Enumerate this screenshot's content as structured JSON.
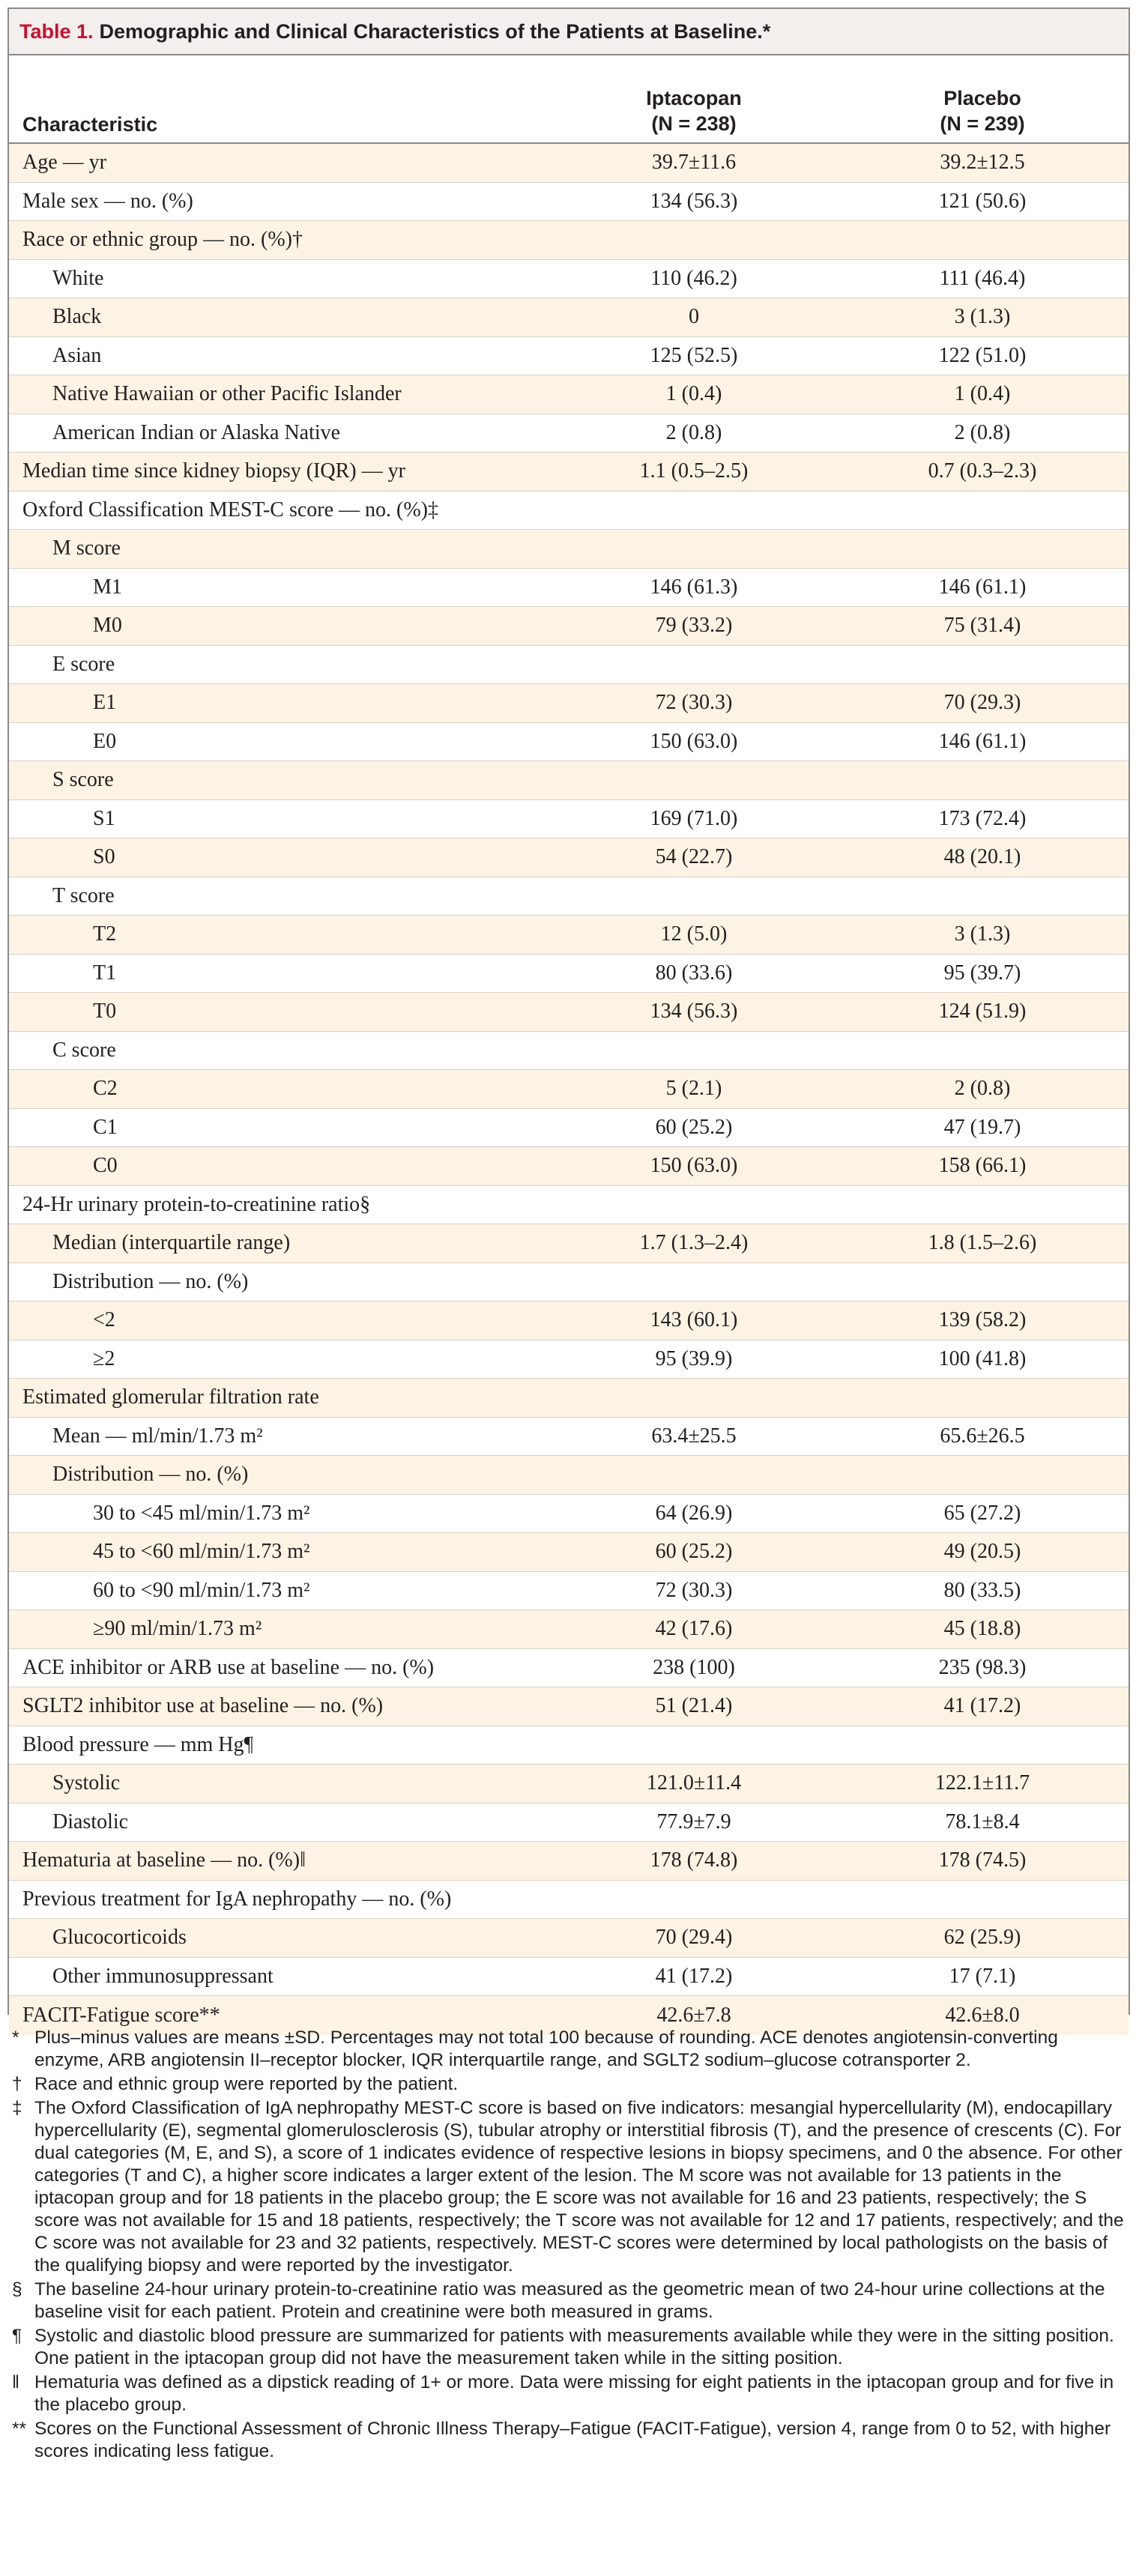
{
  "table": {
    "number": "Table 1.",
    "title": "Demographic and Clinical Characteristics of the Patients at Baseline.*"
  },
  "header": {
    "characteristic": "Characteristic",
    "iptacopan": "Iptacopan",
    "iptacopan_n": "(N = 238)",
    "placebo": "Placebo",
    "placebo_n": "(N = 239)"
  },
  "rows": [
    {
      "label": "Age — yr",
      "iptacopan": "39.7±11.6",
      "placebo": "39.2±12.5",
      "level": 0
    },
    {
      "label": "Male sex — no. (%)",
      "iptacopan": "134 (56.3)",
      "placebo": "121 (50.6)",
      "level": 0
    },
    {
      "label": "Race or ethnic group — no. (%)†",
      "iptacopan": "",
      "placebo": "",
      "level": 0
    },
    {
      "label": "White",
      "iptacopan": "110 (46.2)",
      "placebo": "111 (46.4)",
      "level": 1
    },
    {
      "label": "Black",
      "iptacopan": "0",
      "placebo": "3 (1.3)",
      "level": 1
    },
    {
      "label": "Asian",
      "iptacopan": "125 (52.5)",
      "placebo": "122 (51.0)",
      "level": 1
    },
    {
      "label": "Native Hawaiian or other Pacific Islander",
      "iptacopan": "1 (0.4)",
      "placebo": "1 (0.4)",
      "level": 1
    },
    {
      "label": "American Indian or Alaska Native",
      "iptacopan": "2 (0.8)",
      "placebo": "2 (0.8)",
      "level": 1
    },
    {
      "label": "Median time since kidney biopsy (IQR) — yr",
      "iptacopan": "1.1 (0.5–2.5)",
      "placebo": "0.7 (0.3–2.3)",
      "level": 0
    },
    {
      "label": "Oxford Classification MEST-C score — no. (%)‡",
      "iptacopan": "",
      "placebo": "",
      "level": 0
    },
    {
      "label": "M score",
      "iptacopan": "",
      "placebo": "",
      "level": 1
    },
    {
      "label": "M1",
      "iptacopan": "146 (61.3)",
      "placebo": "146 (61.1)",
      "level": 2
    },
    {
      "label": "M0",
      "iptacopan": "79 (33.2)",
      "placebo": "75 (31.4)",
      "level": 2
    },
    {
      "label": "E score",
      "iptacopan": "",
      "placebo": "",
      "level": 1
    },
    {
      "label": "E1",
      "iptacopan": "72 (30.3)",
      "placebo": "70 (29.3)",
      "level": 2
    },
    {
      "label": "E0",
      "iptacopan": "150 (63.0)",
      "placebo": "146 (61.1)",
      "level": 2
    },
    {
      "label": "S score",
      "iptacopan": "",
      "placebo": "",
      "level": 1
    },
    {
      "label": "S1",
      "iptacopan": "169 (71.0)",
      "placebo": "173 (72.4)",
      "level": 2
    },
    {
      "label": "S0",
      "iptacopan": "54 (22.7)",
      "placebo": "48 (20.1)",
      "level": 2
    },
    {
      "label": "T score",
      "iptacopan": "",
      "placebo": "",
      "level": 1
    },
    {
      "label": "T2",
      "iptacopan": "12 (5.0)",
      "placebo": "3 (1.3)",
      "level": 2
    },
    {
      "label": "T1",
      "iptacopan": "80 (33.6)",
      "placebo": "95 (39.7)",
      "level": 2
    },
    {
      "label": "T0",
      "iptacopan": "134 (56.3)",
      "placebo": "124 (51.9)",
      "level": 2
    },
    {
      "label": "C score",
      "iptacopan": "",
      "placebo": "",
      "level": 1
    },
    {
      "label": "C2",
      "iptacopan": "5 (2.1)",
      "placebo": "2 (0.8)",
      "level": 2
    },
    {
      "label": "C1",
      "iptacopan": "60 (25.2)",
      "placebo": "47 (19.7)",
      "level": 2
    },
    {
      "label": "C0",
      "iptacopan": "150 (63.0)",
      "placebo": "158 (66.1)",
      "level": 2
    },
    {
      "label": "24-Hr urinary protein-to-creatinine ratio§",
      "iptacopan": "",
      "placebo": "",
      "level": 0
    },
    {
      "label": "Median (interquartile range)",
      "iptacopan": "1.7 (1.3–2.4)",
      "placebo": "1.8 (1.5–2.6)",
      "level": 1
    },
    {
      "label": "Distribution — no. (%)",
      "iptacopan": "",
      "placebo": "",
      "level": 1
    },
    {
      "label": "<2",
      "iptacopan": "143 (60.1)",
      "placebo": "139 (58.2)",
      "level": 2
    },
    {
      "label": "≥2",
      "iptacopan": "95 (39.9)",
      "placebo": "100 (41.8)",
      "level": 2
    },
    {
      "label": "Estimated glomerular filtration rate",
      "iptacopan": "",
      "placebo": "",
      "level": 0
    },
    {
      "label": "Mean — ml/min/1.73 m²",
      "iptacopan": "63.4±25.5",
      "placebo": "65.6±26.5",
      "level": 1
    },
    {
      "label": "Distribution — no. (%)",
      "iptacopan": "",
      "placebo": "",
      "level": 1
    },
    {
      "label": "30 to <45 ml/min/1.73 m²",
      "iptacopan": "64 (26.9)",
      "placebo": "65 (27.2)",
      "level": 2
    },
    {
      "label": "45 to <60 ml/min/1.73 m²",
      "iptacopan": "60 (25.2)",
      "placebo": "49 (20.5)",
      "level": 2
    },
    {
      "label": "60 to <90 ml/min/1.73 m²",
      "iptacopan": "72 (30.3)",
      "placebo": "80 (33.5)",
      "level": 2
    },
    {
      "label": "≥90 ml/min/1.73 m²",
      "iptacopan": "42 (17.6)",
      "placebo": "45 (18.8)",
      "level": 2
    },
    {
      "label": "ACE inhibitor or ARB use at baseline — no. (%)",
      "iptacopan": "238 (100)",
      "placebo": "235 (98.3)",
      "level": 0
    },
    {
      "label": "SGLT2 inhibitor use at baseline — no. (%)",
      "iptacopan": "51 (21.4)",
      "placebo": "41 (17.2)",
      "level": 0
    },
    {
      "label": "Blood pressure — mm Hg¶",
      "iptacopan": "",
      "placebo": "",
      "level": 0
    },
    {
      "label": "Systolic",
      "iptacopan": "121.0±11.4",
      "placebo": "122.1±11.7",
      "level": 1
    },
    {
      "label": "Diastolic",
      "iptacopan": "77.9±7.9",
      "placebo": "78.1±8.4",
      "level": 1
    },
    {
      "label": "Hematuria at baseline — no. (%)‖",
      "iptacopan": "178 (74.8)",
      "placebo": "178 (74.5)",
      "level": 0
    },
    {
      "label": "Previous treatment for IgA nephropathy — no. (%)",
      "iptacopan": "",
      "placebo": "",
      "level": 0
    },
    {
      "label": "Glucocorticoids",
      "iptacopan": "70 (29.4)",
      "placebo": "62 (25.9)",
      "level": 1
    },
    {
      "label": "Other immunosuppressant",
      "iptacopan": "41 (17.2)",
      "placebo": "17 (7.1)",
      "level": 1
    },
    {
      "label": "FACIT-Fatigue score**",
      "iptacopan": "42.6±7.8",
      "placebo": "42.6±8.0",
      "level": 0
    }
  ],
  "footnotes": [
    {
      "marker": "*",
      "text": "Plus–minus values are means ±SD. Percentages may not total 100 because of rounding. ACE denotes angiotensin-converting enzyme, ARB angiotensin II–receptor blocker, IQR interquartile range, and SGLT2 sodium–glucose cotransporter 2."
    },
    {
      "marker": "†",
      "text": "Race and ethnic group were reported by the patient."
    },
    {
      "marker": "‡",
      "text": "The Oxford Classification of IgA nephropathy MEST-C score is based on five indicators: mesangial hypercellularity (M), endocapillary hypercellularity (E), segmental glomerulosclerosis (S), tubular atrophy or interstitial fibrosis (T), and the presence of crescents (C). For dual categories (M, E, and S), a score of 1 indicates evidence of respective lesions in biopsy specimens, and 0 the absence. For other categories (T and C), a higher score indicates a larger extent of the lesion. The M score was not available for 13 patients in the iptacopan group and for 18 patients in the placebo group; the E score was not available for 16 and 23 patients, respectively; the S score was not available for 15 and 18 patients, respectively; the T score was not available for 12 and 17 patients, respectively; and the C score was not available for 23 and 32 patients, respectively. MEST-C scores were determined by local pathologists on the basis of the qualifying biopsy and were reported by the investigator."
    },
    {
      "marker": "§",
      "text": "The baseline 24-hour urinary protein-to-creatinine ratio was measured as the geometric mean of two 24-hour urine collections at the baseline visit for each patient. Protein and creatinine were both measured in grams."
    },
    {
      "marker": "¶",
      "text": "Systolic and diastolic blood pressure are summarized for patients with measurements available while they were in the sitting position. One patient in the iptacopan group did not have the measurement taken while in the sitting position."
    },
    {
      "marker": "‖",
      "text": "Hematuria was defined as a dipstick reading of 1+ or more. Data were missing for eight patients in the iptacopan group and for five in the placebo group."
    },
    {
      "marker": "**",
      "text": "Scores on the Functional Assessment of Chronic Illness Therapy–Fatigue (FACIT-Fatigue), version 4, range from 0 to 52, with higher scores indicating less fatigue."
    }
  ]
}
